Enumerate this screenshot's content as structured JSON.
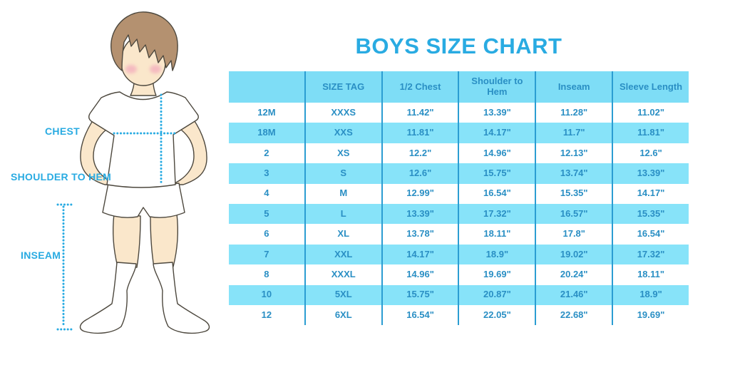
{
  "title": "BOYS SIZE CHART",
  "figure": {
    "labels": {
      "chest": "CHEST",
      "shoulder_to_hem": "SHOULDER TO HEM",
      "inseam": "INSEAM"
    }
  },
  "chart_data": {
    "type": "table",
    "title": "BOYS SIZE CHART",
    "columns": [
      "",
      "SIZE TAG",
      "1/2 Chest",
      "Shoulder to Hem",
      "Inseam",
      "Sleeve Length"
    ],
    "rows": [
      [
        "12M",
        "XXXS",
        "11.42\"",
        "13.39\"",
        "11.28\"",
        "11.02\""
      ],
      [
        "18M",
        "XXS",
        "11.81\"",
        "14.17\"",
        "11.7\"",
        "11.81\""
      ],
      [
        "2",
        "XS",
        "12.2\"",
        "14.96\"",
        "12.13\"",
        "12.6\""
      ],
      [
        "3",
        "S",
        "12.6\"",
        "15.75\"",
        "13.74\"",
        "13.39\""
      ],
      [
        "4",
        "M",
        "12.99\"",
        "16.54\"",
        "15.35\"",
        "14.17\""
      ],
      [
        "5",
        "L",
        "13.39\"",
        "17.32\"",
        "16.57\"",
        "15.35\""
      ],
      [
        "6",
        "XL",
        "13.78\"",
        "18.11\"",
        "17.8\"",
        "16.54\""
      ],
      [
        "7",
        "XXL",
        "14.17\"",
        "18.9\"",
        "19.02\"",
        "17.32\""
      ],
      [
        "8",
        "XXXL",
        "14.96\"",
        "19.69\"",
        "20.24\"",
        "18.11\""
      ],
      [
        "10",
        "5XL",
        "15.75\"",
        "20.87\"",
        "21.46\"",
        "18.9\""
      ],
      [
        "12",
        "6XL",
        "16.54\"",
        "22.05\"",
        "22.68\"",
        "19.69\""
      ]
    ],
    "units": "inches",
    "layout": {
      "header_position": "top",
      "alternating_rows": true,
      "grid": "vertical-only"
    }
  },
  "colors": {
    "accent_blue": "#29ABE2",
    "table_text": "#2A8FC4",
    "header_bg": "#7EDDF6",
    "row_alt_bg": "#87E3F9",
    "column_divider": "#2B9DD2",
    "outline": "#4D483E",
    "hair": "#B49170",
    "skin": "#FAE7CB",
    "cheek": "#F2A3BA"
  }
}
